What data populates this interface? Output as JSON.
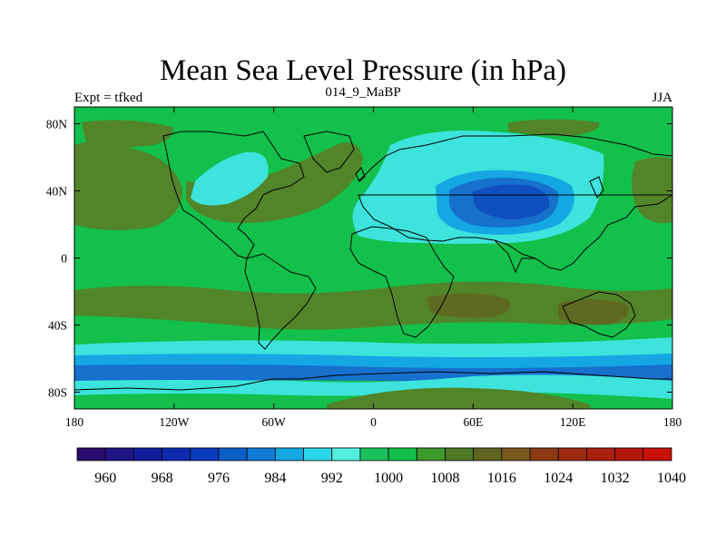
{
  "title": "Mean Sea Level Pressure (in hPa)",
  "subtitle_left": "Expt = tfked",
  "subtitle_center": "014_9_MaBP",
  "subtitle_right": "JJA",
  "x_ticks": [
    "180",
    "120W",
    "60W",
    "0",
    "60E",
    "120E",
    "180"
  ],
  "y_ticks": [
    "80N",
    "40N",
    "0",
    "40S",
    "80S"
  ],
  "colorbar": {
    "labels": [
      "960",
      "968",
      "976",
      "984",
      "992",
      "1000",
      "1008",
      "1016",
      "1024",
      "1032",
      "1040"
    ],
    "colors": [
      "#2a0c6e",
      "#1f1585",
      "#101d9c",
      "#0d29b0",
      "#0a3bbf",
      "#0a5fc7",
      "#0f7bd6",
      "#14a7e3",
      "#2bd6e8",
      "#52eee2",
      "#19c15a",
      "#12c04b",
      "#3e9a2c",
      "#4e7a26",
      "#606420",
      "#7a5a1e",
      "#8c3a14",
      "#9c2a10",
      "#a8200e",
      "#b4160c",
      "#c8120a"
    ]
  },
  "map_colors": {
    "green": "#12c04b",
    "darkgreen": "#52852a",
    "olive": "#5e6a22",
    "cyan": "#3de3dc",
    "teal": "#14a7e3",
    "blue": "#1670cc",
    "deepblue": "#0f4fbe",
    "coast": "#000000"
  }
}
